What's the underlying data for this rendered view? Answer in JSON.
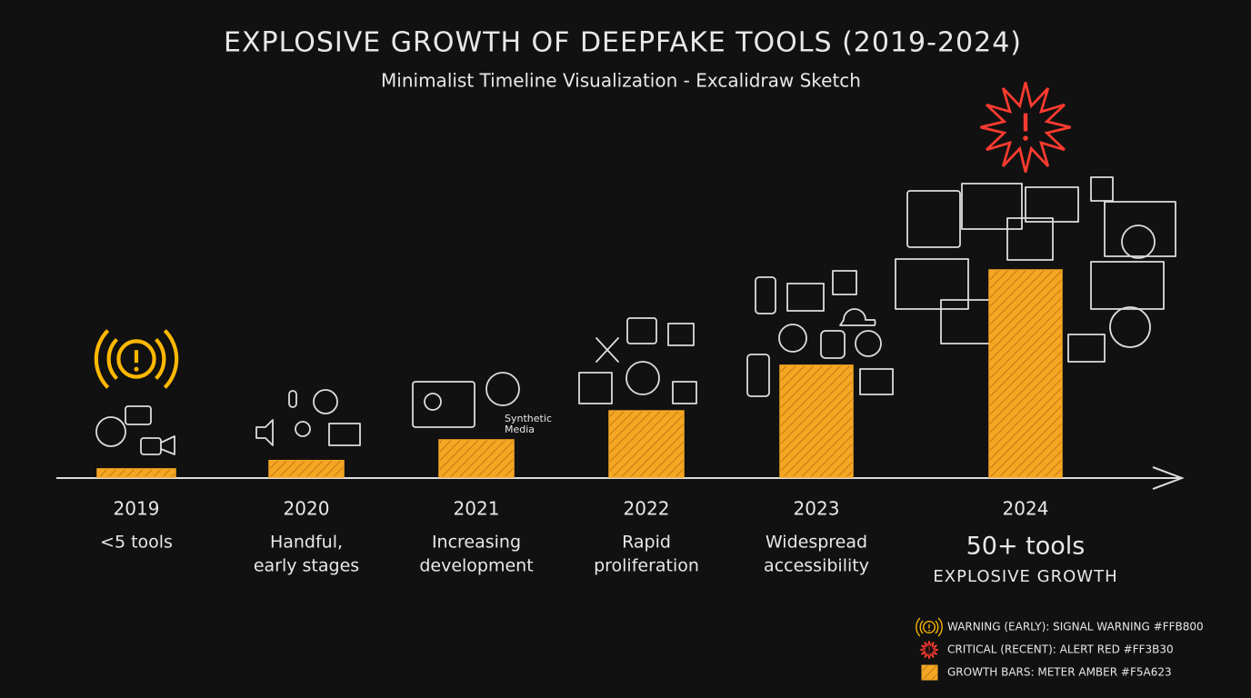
{
  "chart_data": {
    "type": "bar",
    "title": "EXPLOSIVE GROWTH OF DEEPFAKE TOOLS (2019-2024)",
    "subtitle": "Minimalist Timeline Visualization - Excalidraw Sketch",
    "categories": [
      "2019",
      "2020",
      "2021",
      "2022",
      "2023",
      "2024"
    ],
    "values": [
      2,
      4,
      9,
      16,
      27,
      50
    ],
    "descriptions": [
      [
        "<5 tools"
      ],
      [
        "Handful,",
        "early stages"
      ],
      [
        "Increasing",
        "development"
      ],
      [
        "Rapid",
        "proliferation"
      ],
      [
        "Widespread",
        "accessibility"
      ],
      [
        "50+ tools"
      ]
    ],
    "annotation": "EXPLOSIVE GROWTH",
    "color": "#F5A623",
    "warning_color": "#FFB800",
    "critical_color": "#FF3B30",
    "icon_labels": [
      "Synthetic",
      "Media"
    ],
    "legend": [
      {
        "kind": "warning",
        "label": "WARNING (EARLY): SIGNAL WARNING #FFB800"
      },
      {
        "kind": "critical",
        "label": "CRITICAL (RECENT): ALERT RED #FF3B30"
      },
      {
        "kind": "bar",
        "label": "GROWTH BARS: METER AMBER #F5A623"
      }
    ]
  }
}
